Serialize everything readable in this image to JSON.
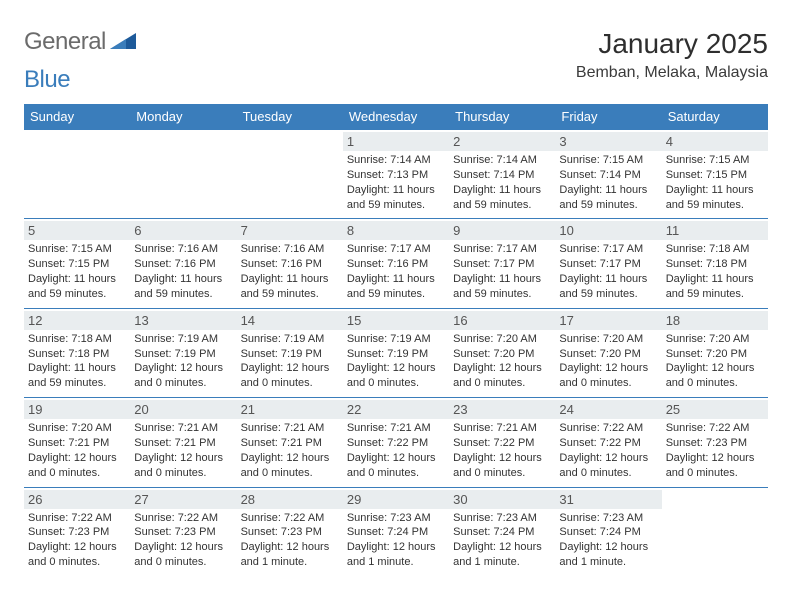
{
  "logo": {
    "word1": "General",
    "word2": "Blue"
  },
  "title": "January 2025",
  "location": "Bemban, Melaka, Malaysia",
  "weekdays": [
    "Sunday",
    "Monday",
    "Tuesday",
    "Wednesday",
    "Thursday",
    "Friday",
    "Saturday"
  ],
  "colors": {
    "header_bg": "#3a7dbb",
    "header_text": "#ffffff",
    "daynum_bg": "#e9edef",
    "border": "#3a7dbb",
    "logo_gray": "#6b6b6b",
    "logo_blue": "#3a7dbb"
  },
  "type": "calendar-table",
  "layout": {
    "columns": 7,
    "rows": 5,
    "first_weekday_index": 3
  },
  "days": [
    {
      "n": 1,
      "l1": "Sunrise: 7:14 AM",
      "l2": "Sunset: 7:13 PM",
      "l3": "Daylight: 11 hours",
      "l4": "and 59 minutes."
    },
    {
      "n": 2,
      "l1": "Sunrise: 7:14 AM",
      "l2": "Sunset: 7:14 PM",
      "l3": "Daylight: 11 hours",
      "l4": "and 59 minutes."
    },
    {
      "n": 3,
      "l1": "Sunrise: 7:15 AM",
      "l2": "Sunset: 7:14 PM",
      "l3": "Daylight: 11 hours",
      "l4": "and 59 minutes."
    },
    {
      "n": 4,
      "l1": "Sunrise: 7:15 AM",
      "l2": "Sunset: 7:15 PM",
      "l3": "Daylight: 11 hours",
      "l4": "and 59 minutes."
    },
    {
      "n": 5,
      "l1": "Sunrise: 7:15 AM",
      "l2": "Sunset: 7:15 PM",
      "l3": "Daylight: 11 hours",
      "l4": "and 59 minutes."
    },
    {
      "n": 6,
      "l1": "Sunrise: 7:16 AM",
      "l2": "Sunset: 7:16 PM",
      "l3": "Daylight: 11 hours",
      "l4": "and 59 minutes."
    },
    {
      "n": 7,
      "l1": "Sunrise: 7:16 AM",
      "l2": "Sunset: 7:16 PM",
      "l3": "Daylight: 11 hours",
      "l4": "and 59 minutes."
    },
    {
      "n": 8,
      "l1": "Sunrise: 7:17 AM",
      "l2": "Sunset: 7:16 PM",
      "l3": "Daylight: 11 hours",
      "l4": "and 59 minutes."
    },
    {
      "n": 9,
      "l1": "Sunrise: 7:17 AM",
      "l2": "Sunset: 7:17 PM",
      "l3": "Daylight: 11 hours",
      "l4": "and 59 minutes."
    },
    {
      "n": 10,
      "l1": "Sunrise: 7:17 AM",
      "l2": "Sunset: 7:17 PM",
      "l3": "Daylight: 11 hours",
      "l4": "and 59 minutes."
    },
    {
      "n": 11,
      "l1": "Sunrise: 7:18 AM",
      "l2": "Sunset: 7:18 PM",
      "l3": "Daylight: 11 hours",
      "l4": "and 59 minutes."
    },
    {
      "n": 12,
      "l1": "Sunrise: 7:18 AM",
      "l2": "Sunset: 7:18 PM",
      "l3": "Daylight: 11 hours",
      "l4": "and 59 minutes."
    },
    {
      "n": 13,
      "l1": "Sunrise: 7:19 AM",
      "l2": "Sunset: 7:19 PM",
      "l3": "Daylight: 12 hours",
      "l4": "and 0 minutes."
    },
    {
      "n": 14,
      "l1": "Sunrise: 7:19 AM",
      "l2": "Sunset: 7:19 PM",
      "l3": "Daylight: 12 hours",
      "l4": "and 0 minutes."
    },
    {
      "n": 15,
      "l1": "Sunrise: 7:19 AM",
      "l2": "Sunset: 7:19 PM",
      "l3": "Daylight: 12 hours",
      "l4": "and 0 minutes."
    },
    {
      "n": 16,
      "l1": "Sunrise: 7:20 AM",
      "l2": "Sunset: 7:20 PM",
      "l3": "Daylight: 12 hours",
      "l4": "and 0 minutes."
    },
    {
      "n": 17,
      "l1": "Sunrise: 7:20 AM",
      "l2": "Sunset: 7:20 PM",
      "l3": "Daylight: 12 hours",
      "l4": "and 0 minutes."
    },
    {
      "n": 18,
      "l1": "Sunrise: 7:20 AM",
      "l2": "Sunset: 7:20 PM",
      "l3": "Daylight: 12 hours",
      "l4": "and 0 minutes."
    },
    {
      "n": 19,
      "l1": "Sunrise: 7:20 AM",
      "l2": "Sunset: 7:21 PM",
      "l3": "Daylight: 12 hours",
      "l4": "and 0 minutes."
    },
    {
      "n": 20,
      "l1": "Sunrise: 7:21 AM",
      "l2": "Sunset: 7:21 PM",
      "l3": "Daylight: 12 hours",
      "l4": "and 0 minutes."
    },
    {
      "n": 21,
      "l1": "Sunrise: 7:21 AM",
      "l2": "Sunset: 7:21 PM",
      "l3": "Daylight: 12 hours",
      "l4": "and 0 minutes."
    },
    {
      "n": 22,
      "l1": "Sunrise: 7:21 AM",
      "l2": "Sunset: 7:22 PM",
      "l3": "Daylight: 12 hours",
      "l4": "and 0 minutes."
    },
    {
      "n": 23,
      "l1": "Sunrise: 7:21 AM",
      "l2": "Sunset: 7:22 PM",
      "l3": "Daylight: 12 hours",
      "l4": "and 0 minutes."
    },
    {
      "n": 24,
      "l1": "Sunrise: 7:22 AM",
      "l2": "Sunset: 7:22 PM",
      "l3": "Daylight: 12 hours",
      "l4": "and 0 minutes."
    },
    {
      "n": 25,
      "l1": "Sunrise: 7:22 AM",
      "l2": "Sunset: 7:23 PM",
      "l3": "Daylight: 12 hours",
      "l4": "and 0 minutes."
    },
    {
      "n": 26,
      "l1": "Sunrise: 7:22 AM",
      "l2": "Sunset: 7:23 PM",
      "l3": "Daylight: 12 hours",
      "l4": "and 0 minutes."
    },
    {
      "n": 27,
      "l1": "Sunrise: 7:22 AM",
      "l2": "Sunset: 7:23 PM",
      "l3": "Daylight: 12 hours",
      "l4": "and 0 minutes."
    },
    {
      "n": 28,
      "l1": "Sunrise: 7:22 AM",
      "l2": "Sunset: 7:23 PM",
      "l3": "Daylight: 12 hours",
      "l4": "and 1 minute."
    },
    {
      "n": 29,
      "l1": "Sunrise: 7:23 AM",
      "l2": "Sunset: 7:24 PM",
      "l3": "Daylight: 12 hours",
      "l4": "and 1 minute."
    },
    {
      "n": 30,
      "l1": "Sunrise: 7:23 AM",
      "l2": "Sunset: 7:24 PM",
      "l3": "Daylight: 12 hours",
      "l4": "and 1 minute."
    },
    {
      "n": 31,
      "l1": "Sunrise: 7:23 AM",
      "l2": "Sunset: 7:24 PM",
      "l3": "Daylight: 12 hours",
      "l4": "and 1 minute."
    }
  ]
}
